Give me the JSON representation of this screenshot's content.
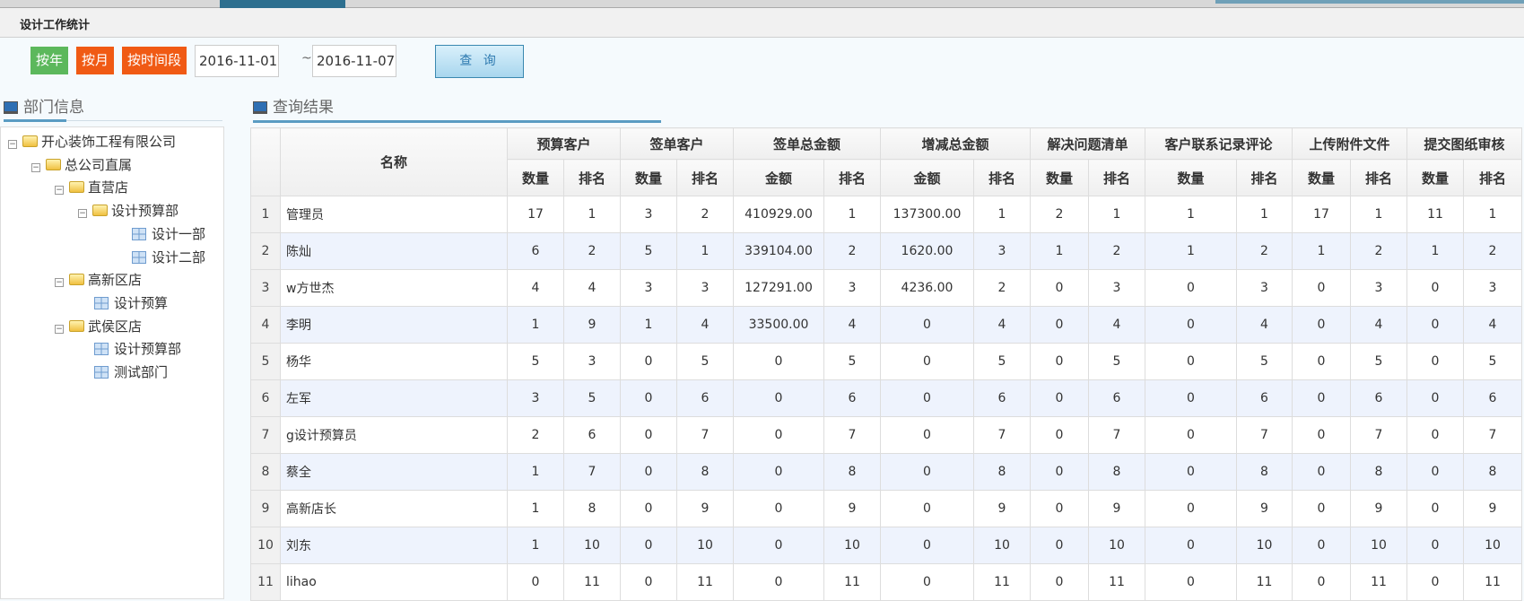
{
  "title": "设计工作统计",
  "toolbar": {
    "by_year": "按年",
    "by_month": "按月",
    "by_period": "按时间段",
    "date_from": "2016-11-01",
    "separator": "~",
    "date_to": "2016-11-07",
    "query": "查 询",
    "colors": {
      "year": "#5cb85c",
      "month": "#f05a14"
    }
  },
  "dept_panel": {
    "title": "部门信息",
    "tree": [
      {
        "label": "开心装饰工程有限公司",
        "type": "folder",
        "level": 0
      },
      {
        "label": "总公司直属",
        "type": "folder",
        "level": 1
      },
      {
        "label": "直营店",
        "type": "folder",
        "level": 2
      },
      {
        "label": "设计预算部",
        "type": "folder",
        "level": 3
      },
      {
        "label": "设计一部",
        "type": "leaf",
        "level": 4
      },
      {
        "label": "设计二部",
        "type": "leaf",
        "level": 4
      },
      {
        "label": "高新区店",
        "type": "folder",
        "level": 2
      },
      {
        "label": "设计预算",
        "type": "leaf",
        "level": 3
      },
      {
        "label": "武侯区店",
        "type": "folder",
        "level": 2
      },
      {
        "label": "设计预算部",
        "type": "leaf",
        "level": 3
      },
      {
        "label": "测试部门",
        "type": "leaf",
        "level": 3
      }
    ]
  },
  "results": {
    "title": "查询结果",
    "name_header": "名称",
    "groups": [
      {
        "label": "预算客户",
        "sub": [
          "数量",
          "排名"
        ]
      },
      {
        "label": "签单客户",
        "sub": [
          "数量",
          "排名"
        ]
      },
      {
        "label": "签单总金额",
        "sub": [
          "金额",
          "排名"
        ]
      },
      {
        "label": "增减总金额",
        "sub": [
          "金额",
          "排名"
        ]
      },
      {
        "label": "解决问题清单",
        "sub": [
          "数量",
          "排名"
        ]
      },
      {
        "label": "客户联系记录评论",
        "sub": [
          "数量",
          "排名"
        ]
      },
      {
        "label": "上传附件文件",
        "sub": [
          "数量",
          "排名"
        ]
      },
      {
        "label": "提交图纸审核",
        "sub": [
          "数量",
          "排名"
        ]
      }
    ],
    "rows": [
      [
        "1",
        "管理员",
        "17",
        "1",
        "3",
        "2",
        "410929.00",
        "1",
        "137300.00",
        "1",
        "2",
        "1",
        "1",
        "1",
        "17",
        "1",
        "11",
        "1"
      ],
      [
        "2",
        "陈灿",
        "6",
        "2",
        "5",
        "1",
        "339104.00",
        "2",
        "1620.00",
        "3",
        "1",
        "2",
        "1",
        "2",
        "1",
        "2",
        "1",
        "2"
      ],
      [
        "3",
        "w方世杰",
        "4",
        "4",
        "3",
        "3",
        "127291.00",
        "3",
        "4236.00",
        "2",
        "0",
        "3",
        "0",
        "3",
        "0",
        "3",
        "0",
        "3"
      ],
      [
        "4",
        "李明",
        "1",
        "9",
        "1",
        "4",
        "33500.00",
        "4",
        "0",
        "4",
        "0",
        "4",
        "0",
        "4",
        "0",
        "4",
        "0",
        "4"
      ],
      [
        "5",
        "杨华",
        "5",
        "3",
        "0",
        "5",
        "0",
        "5",
        "0",
        "5",
        "0",
        "5",
        "0",
        "5",
        "0",
        "5",
        "0",
        "5"
      ],
      [
        "6",
        "左军",
        "3",
        "5",
        "0",
        "6",
        "0",
        "6",
        "0",
        "6",
        "0",
        "6",
        "0",
        "6",
        "0",
        "6",
        "0",
        "6"
      ],
      [
        "7",
        "g设计预算员",
        "2",
        "6",
        "0",
        "7",
        "0",
        "7",
        "0",
        "7",
        "0",
        "7",
        "0",
        "7",
        "0",
        "7",
        "0",
        "7"
      ],
      [
        "8",
        "蔡全",
        "1",
        "7",
        "0",
        "8",
        "0",
        "8",
        "0",
        "8",
        "0",
        "8",
        "0",
        "8",
        "0",
        "8",
        "0",
        "8"
      ],
      [
        "9",
        "高新店长",
        "1",
        "8",
        "0",
        "9",
        "0",
        "9",
        "0",
        "9",
        "0",
        "9",
        "0",
        "9",
        "0",
        "9",
        "0",
        "9"
      ],
      [
        "10",
        "刘东",
        "1",
        "10",
        "0",
        "10",
        "0",
        "10",
        "0",
        "10",
        "0",
        "10",
        "0",
        "10",
        "0",
        "10",
        "0",
        "10"
      ],
      [
        "11",
        "lihao",
        "0",
        "11",
        "0",
        "11",
        "0",
        "11",
        "0",
        "11",
        "0",
        "11",
        "0",
        "11",
        "0",
        "11",
        "0",
        "11"
      ]
    ]
  }
}
